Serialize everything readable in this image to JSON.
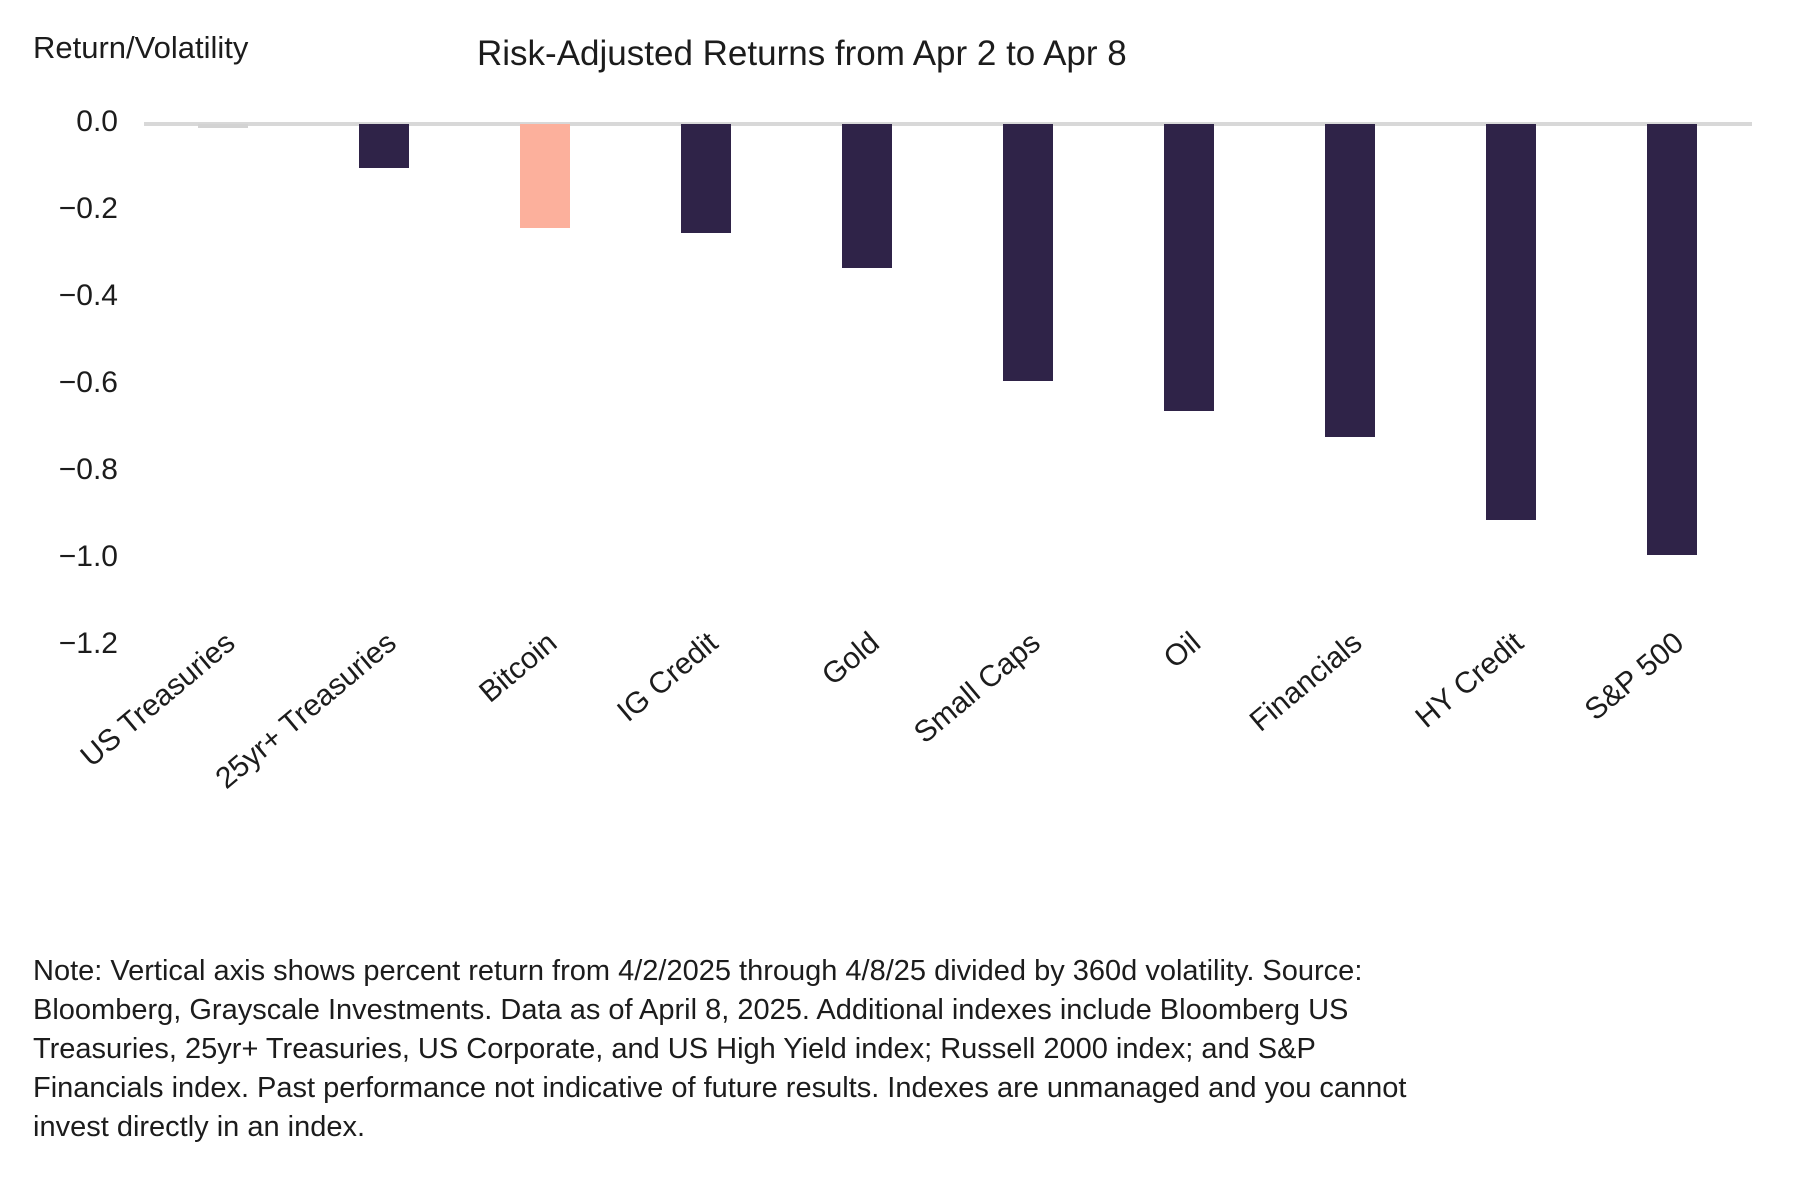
{
  "chart_data": {
    "type": "bar",
    "title": "Risk-Adjusted Returns from Apr 2 to Apr 8",
    "ylabel": "Return/Volatility",
    "categories": [
      "US Treasuries",
      "25yr+ Treasuries",
      "Bitcoin",
      "IG Credit",
      "Gold",
      "Small Caps",
      "Oil",
      "Financials",
      "HY Credit",
      "S&P 500"
    ],
    "values": [
      -0.01,
      -0.1,
      -0.24,
      -0.25,
      -0.33,
      -0.59,
      -0.66,
      -0.72,
      -0.91,
      -0.99
    ],
    "bar_colors": [
      "#d3d3d3",
      "#2f2348",
      "#fcb09c",
      "#2f2348",
      "#2f2348",
      "#2f2348",
      "#2f2348",
      "#2f2348",
      "#2f2348",
      "#2f2348"
    ],
    "ytick_labels": [
      "0.0",
      "−0.2",
      "−0.4",
      "−0.6",
      "−0.8",
      "−1.0",
      "−1.2"
    ],
    "ytick_values": [
      0,
      -0.2,
      -0.4,
      -0.6,
      -0.8,
      -1.0,
      -1.2
    ],
    "ylim": [
      0,
      -1.2
    ],
    "grid": false,
    "legend_position": "none",
    "highlight": {
      "category": "Bitcoin",
      "color": "#fcb09c"
    },
    "colors": {
      "bar_default": "#2f2348",
      "bar_highlight": "#fcb09c",
      "bar_near_zero": "#d3d3d3",
      "axis_line": "#d8d8d8",
      "text": "#1c1c1c"
    }
  },
  "note_lines": [
    "Note: Vertical axis shows percent return from 4/2/2025 through 4/8/25 divided by 360d volatility. Source:",
    "Bloomberg, Grayscale Investments. Data as of April 8, 2025. Additional indexes include Bloomberg US",
    "Treasuries, 25yr+ Treasuries, US Corporate, and US High Yield index; Russell 2000 index; and S&P",
    "Financials index. Past performance not indicative of future results. Indexes are unmanaged and you cannot",
    "invest directly in an index."
  ]
}
